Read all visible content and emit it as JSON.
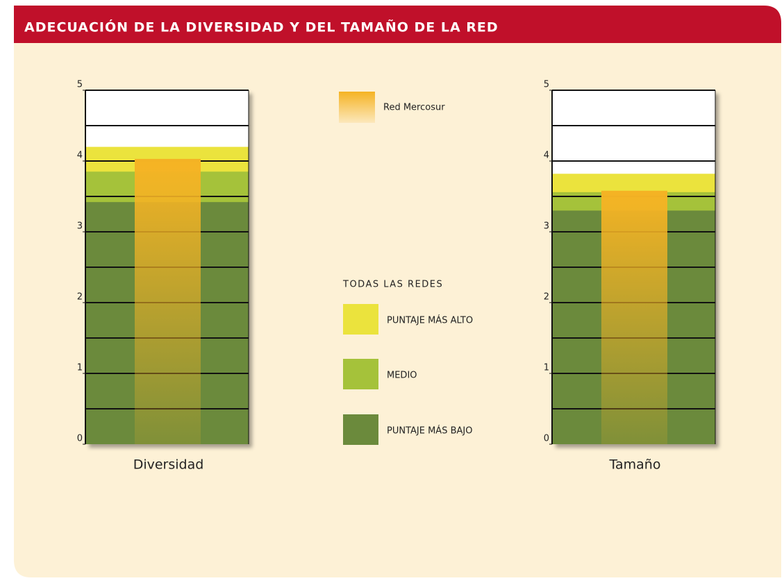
{
  "header": {
    "title": "ADECUACIÓN DE LA DIVERSIDAD Y DEL TAMAÑO DE LA RED"
  },
  "legend_group": "TODAS LAS REDES",
  "chart_data": [
    {
      "type": "bar",
      "categories": [
        "Diversidad"
      ],
      "ylim": [
        0,
        5
      ],
      "yticks": [
        0,
        1,
        2,
        3,
        4,
        5
      ],
      "grid_lines": [
        0.5,
        1,
        1.5,
        2,
        2.5,
        3,
        3.5,
        4,
        4.5
      ],
      "series": [
        {
          "name": "Red Mercosur",
          "color": "#f5b324",
          "values": [
            4.03
          ]
        },
        {
          "name": "PUNTAJE MÁS ALTO",
          "color": "#ebe33d",
          "values": [
            4.2
          ]
        },
        {
          "name": "MEDIO",
          "color": "#a5c23a",
          "values": [
            3.85
          ]
        },
        {
          "name": "PUNTAJE MÁS BAJO",
          "color": "#6b8a3c",
          "values": [
            3.42
          ]
        }
      ]
    },
    {
      "type": "bar",
      "categories": [
        "Tamaño"
      ],
      "ylim": [
        0,
        5
      ],
      "yticks": [
        0,
        1,
        2,
        3,
        4,
        5
      ],
      "grid_lines": [
        0.5,
        1,
        1.5,
        2,
        2.5,
        3,
        3.5,
        4,
        4.5
      ],
      "series": [
        {
          "name": "Red Mercosur",
          "color": "#f5b324",
          "values": [
            3.58
          ]
        },
        {
          "name": "PUNTAJE MÁS ALTO",
          "color": "#ebe33d",
          "values": [
            3.82
          ]
        },
        {
          "name": "MEDIO",
          "color": "#a5c23a",
          "values": [
            3.56
          ]
        },
        {
          "name": "PUNTAJE MÁS BAJO",
          "color": "#6b8a3c",
          "values": [
            3.3
          ]
        }
      ]
    }
  ]
}
